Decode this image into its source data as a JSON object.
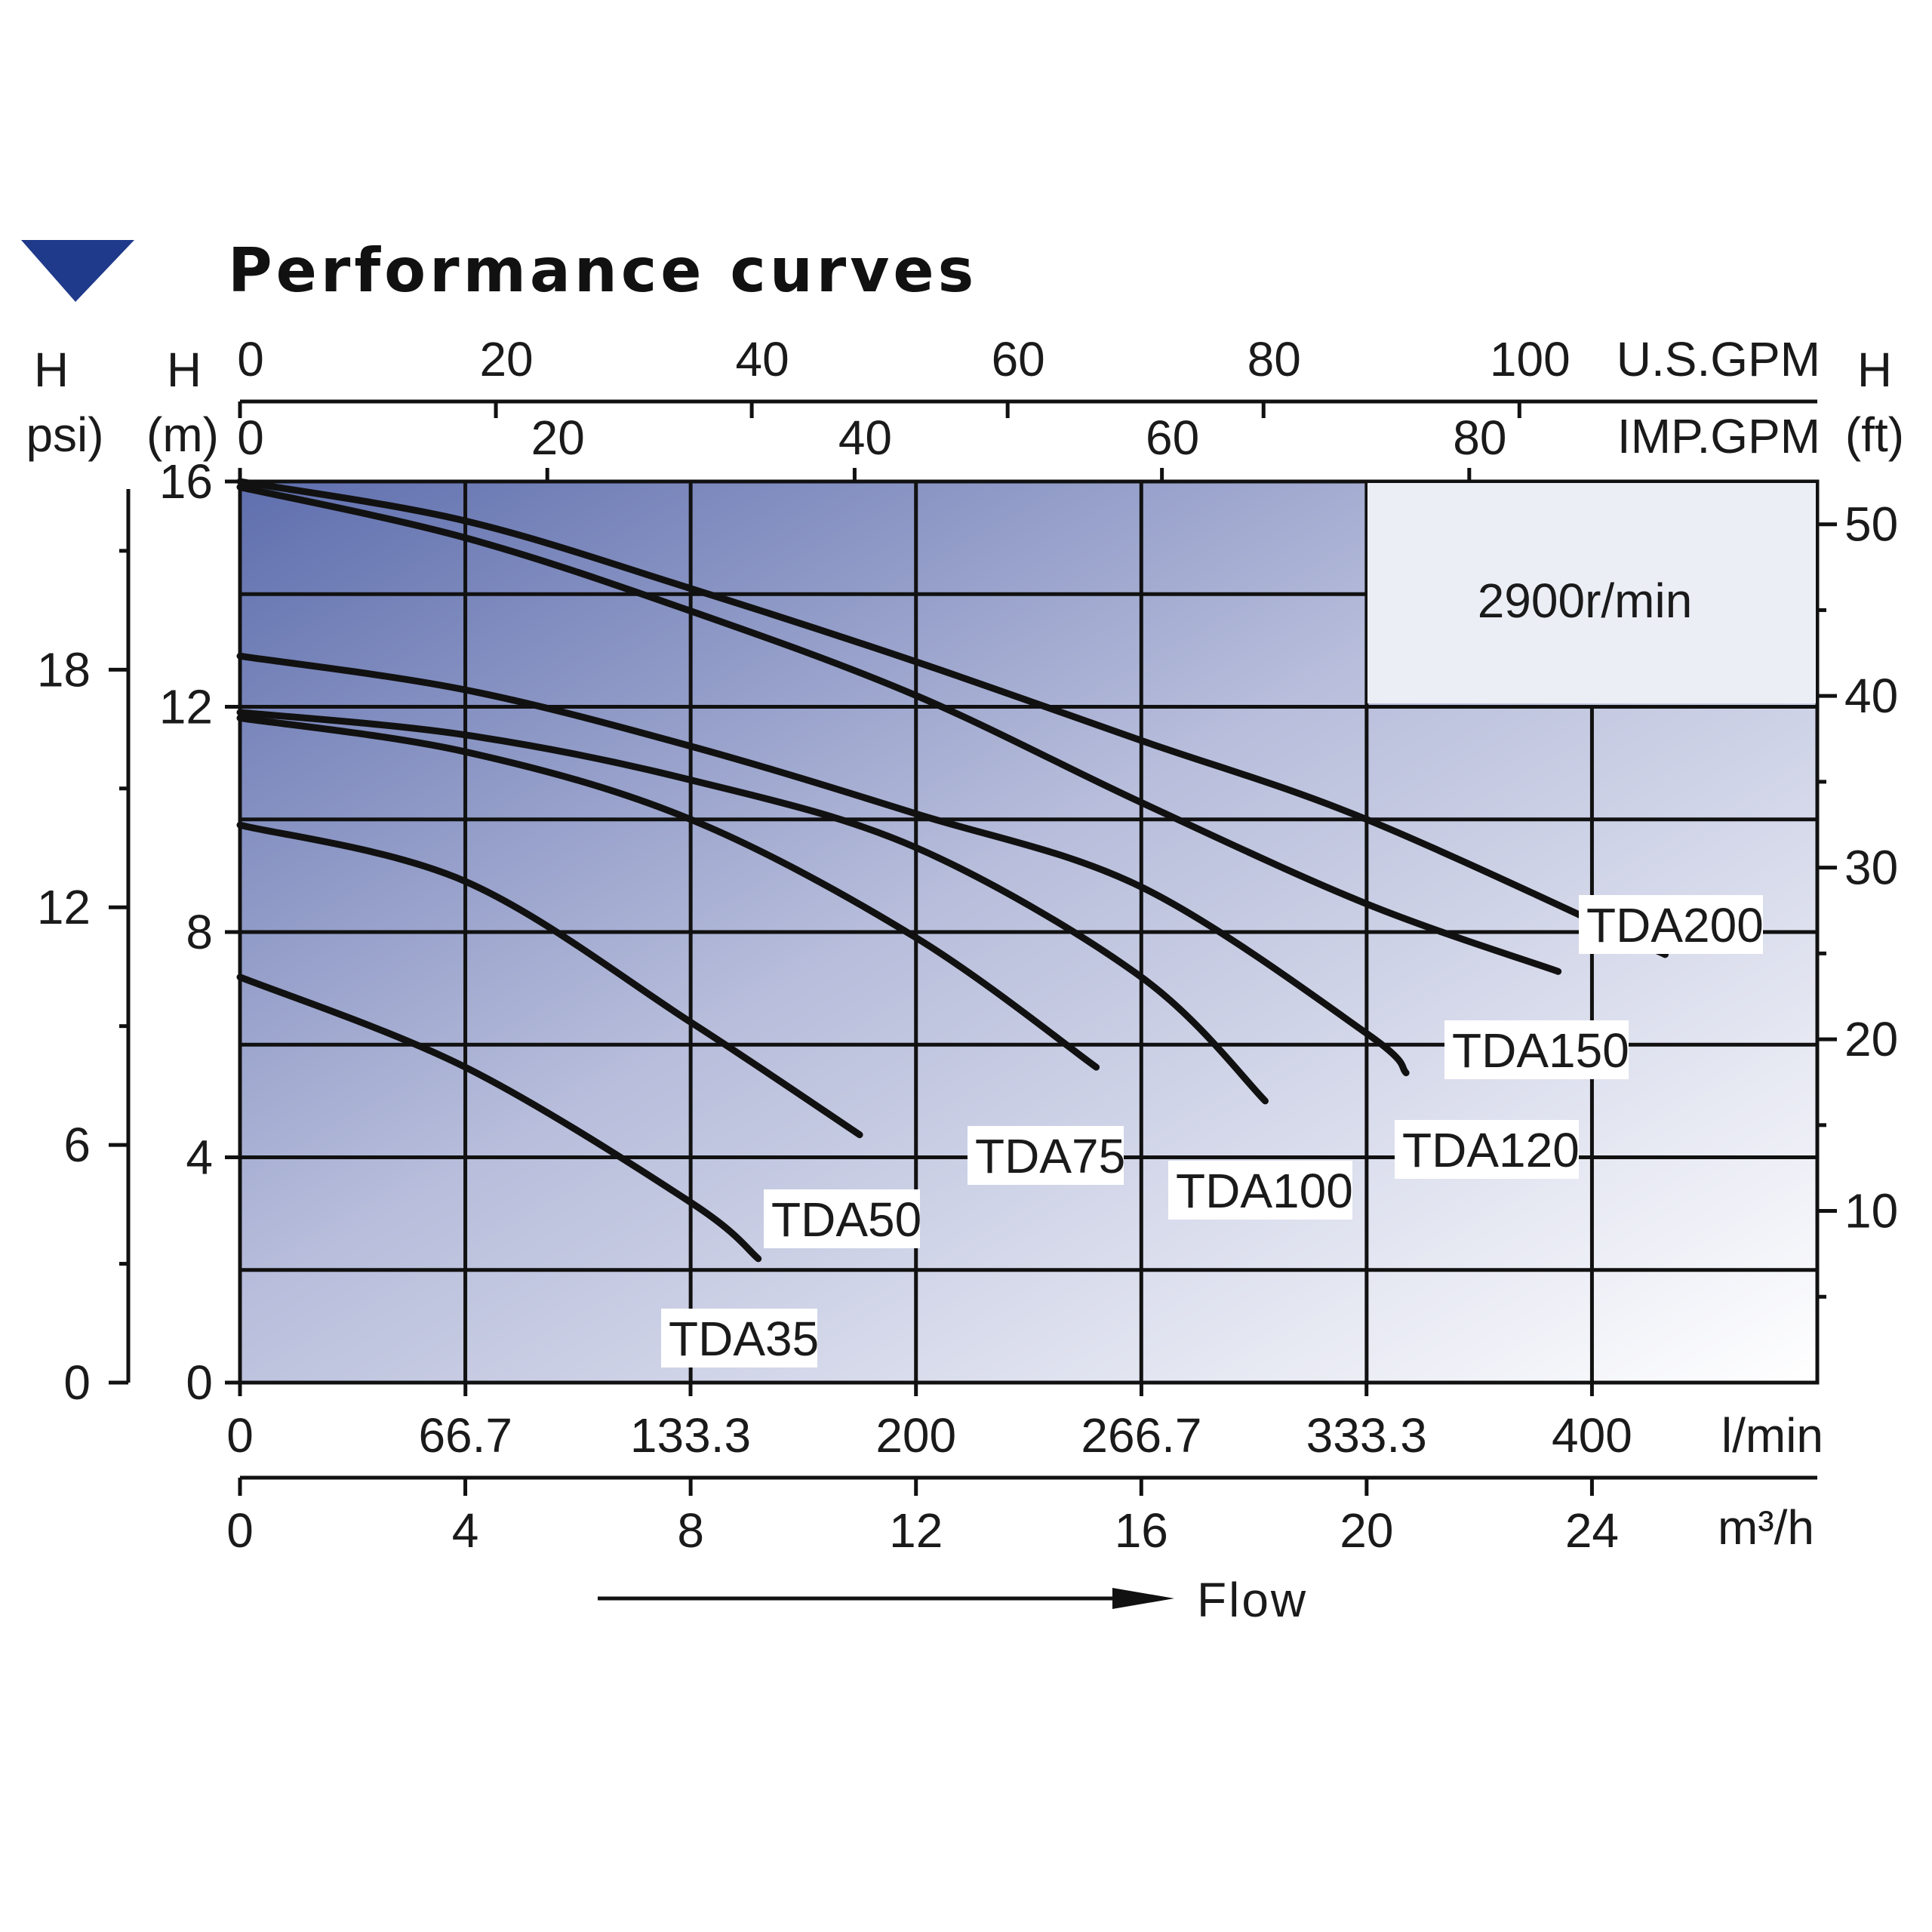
{
  "header": {
    "title": "Performance curves",
    "marker_color": "#1f3a8a"
  },
  "chart_data": {
    "type": "line",
    "title": "Performance curves",
    "speed_label": "2900r/min",
    "flow_label": "Flow",
    "xlim_m3h": [
      0,
      28
    ],
    "ylim_m": [
      0,
      16
    ],
    "grid": true,
    "background": "blue-to-white gradient",
    "axes": {
      "left_m": {
        "labels": [
          "H",
          "(m)"
        ],
        "ticks": [
          0,
          4,
          8,
          12,
          16
        ]
      },
      "left_psi": {
        "labels": [
          "H",
          "psi)"
        ],
        "ticks": [
          0,
          6,
          12,
          18
        ],
        "minor_step": 3
      },
      "right_ft": {
        "labels": [
          "H",
          "(ft)"
        ],
        "ticks": [
          10,
          20,
          30,
          40,
          50
        ]
      },
      "top_usgpm": {
        "unit": "U.S.GPM",
        "ticks": [
          0,
          20,
          40,
          60,
          80,
          100
        ]
      },
      "top_impgpm": {
        "unit": "IMP.GPM",
        "ticks": [
          0,
          20,
          40,
          60,
          80
        ]
      },
      "bottom_lmin": {
        "unit": "l/min",
        "ticks": [
          "0",
          "66.7",
          "133.3",
          "200",
          "266.7",
          "333.3",
          "400"
        ],
        "values": [
          0,
          66.7,
          133.3,
          200,
          266.7,
          333.3,
          400
        ]
      },
      "bottom_m3h": {
        "unit": "m³/h",
        "ticks": [
          0,
          4,
          8,
          12,
          16,
          20,
          24
        ]
      }
    },
    "series": [
      {
        "name": "TDA35",
        "x": [
          0,
          4,
          8,
          9.2
        ],
        "y": [
          7.2,
          5.6,
          3.2,
          2.2
        ]
      },
      {
        "name": "TDA50",
        "x": [
          0,
          4,
          8,
          11
        ],
        "y": [
          9.9,
          8.9,
          6.4,
          4.4
        ]
      },
      {
        "name": "TDA75",
        "x": [
          0,
          4,
          8,
          12,
          15.2
        ],
        "y": [
          11.8,
          11.2,
          10.0,
          7.9,
          5.6
        ]
      },
      {
        "name": "TDA100",
        "x": [
          0,
          4,
          8,
          12,
          16,
          18.2
        ],
        "y": [
          11.9,
          11.5,
          10.7,
          9.5,
          7.2,
          5.0
        ]
      },
      {
        "name": "TDA120",
        "x": [
          0,
          4,
          8,
          12,
          16,
          20,
          20.7
        ],
        "y": [
          12.9,
          12.3,
          11.3,
          10.1,
          8.8,
          6.2,
          5.5
        ]
      },
      {
        "name": "TDA150",
        "x": [
          0,
          4,
          8,
          12,
          16,
          20,
          23.4
        ],
        "y": [
          15.9,
          15.0,
          13.7,
          12.2,
          10.3,
          8.5,
          7.3
        ]
      },
      {
        "name": "TDA200",
        "x": [
          0,
          4,
          8,
          12,
          16,
          20,
          25.3
        ],
        "y": [
          16.0,
          15.3,
          14.1,
          12.8,
          11.4,
          10.0,
          7.6
        ]
      }
    ]
  }
}
